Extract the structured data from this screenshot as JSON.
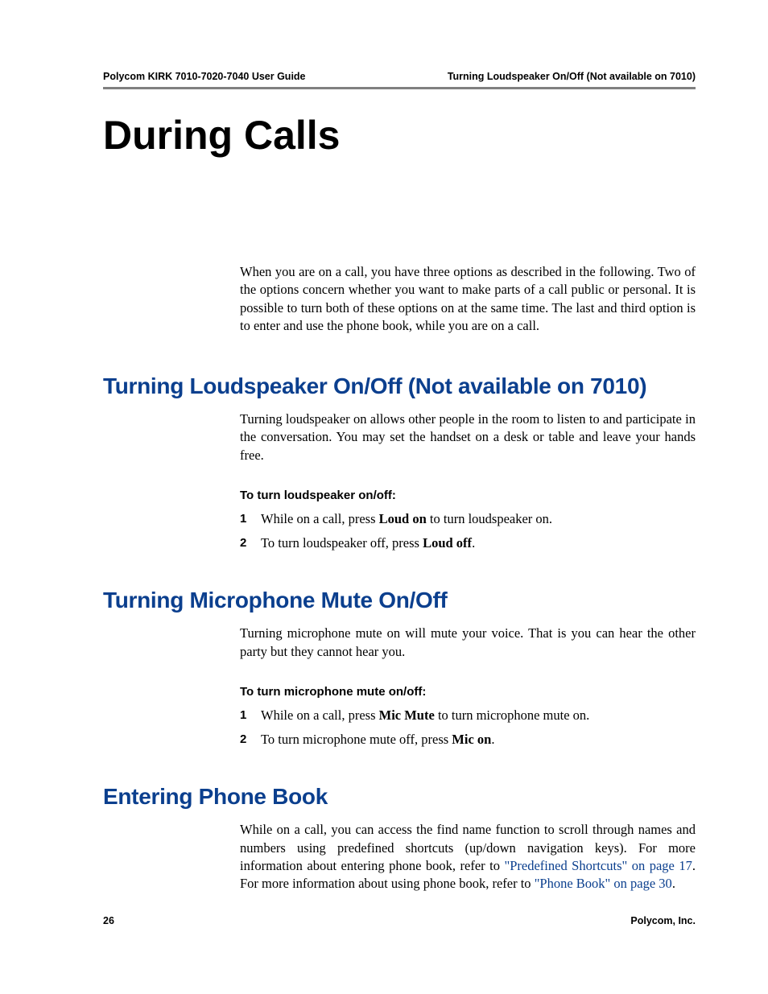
{
  "colors": {
    "heading_blue": "#0b3f8e",
    "rule_gray": "#808080",
    "text_black": "#000000",
    "background": "#ffffff"
  },
  "typography": {
    "body_font": "Palatino",
    "heading_font": "Futura/Arial Narrow Bold",
    "body_size_pt": 12,
    "chapter_title_size_pt": 38,
    "section_heading_size_pt": 21,
    "sub_heading_size_pt": 11,
    "running_header_size_pt": 9
  },
  "header": {
    "left": "Polycom KIRK 7010-7020-7040 User Guide",
    "right": "Turning Loudspeaker On/Off (Not available on 7010)"
  },
  "chapter_title": "During Calls",
  "intro": "When you are on a call, you have three options as described in the following. Two of the options concern whether you want to make parts of a call public or personal. It is possible to turn both of these options on at the same time. The last and third option is to enter and use the phone book, while you are on a call.",
  "sections": [
    {
      "heading": "Turning Loudspeaker On/Off (Not available on 7010)",
      "body": "Turning loudspeaker on allows other people in the room to listen to and participate in the conversation. You may set the handset on a desk or table and leave your hands free.",
      "sub_heading": "To turn loudspeaker on/off:",
      "steps": [
        {
          "pre": "While on a call, press ",
          "bold": "Loud on",
          "post": " to turn loudspeaker on."
        },
        {
          "pre": "To turn loudspeaker off, press ",
          "bold": "Loud off",
          "post": "."
        }
      ]
    },
    {
      "heading": "Turning Microphone Mute On/Off",
      "body": "Turning microphone mute on will mute your voice. That is you can hear the other party but they cannot hear you.",
      "sub_heading": "To turn microphone mute on/off:",
      "steps": [
        {
          "pre": "While on a call, press ",
          "bold": "Mic Mute",
          "post": " to turn microphone mute on."
        },
        {
          "pre": "To turn microphone mute off, press ",
          "bold": "Mic on",
          "post": "."
        }
      ]
    },
    {
      "heading": "Entering Phone Book",
      "body_parts": {
        "p1": "While on a call, you can access the find name function to scroll through names and numbers using predefined shortcuts (up/down navigation keys). For more information about entering phone book, refer to ",
        "link1": "\"Predefined Shortcuts\" on page 17",
        "p2": ". For more information about using phone book, refer to ",
        "link2": "\"Phone Book\" on page 30",
        "p3": "."
      }
    }
  ],
  "footer": {
    "page_number": "26",
    "company": "Polycom, Inc."
  }
}
